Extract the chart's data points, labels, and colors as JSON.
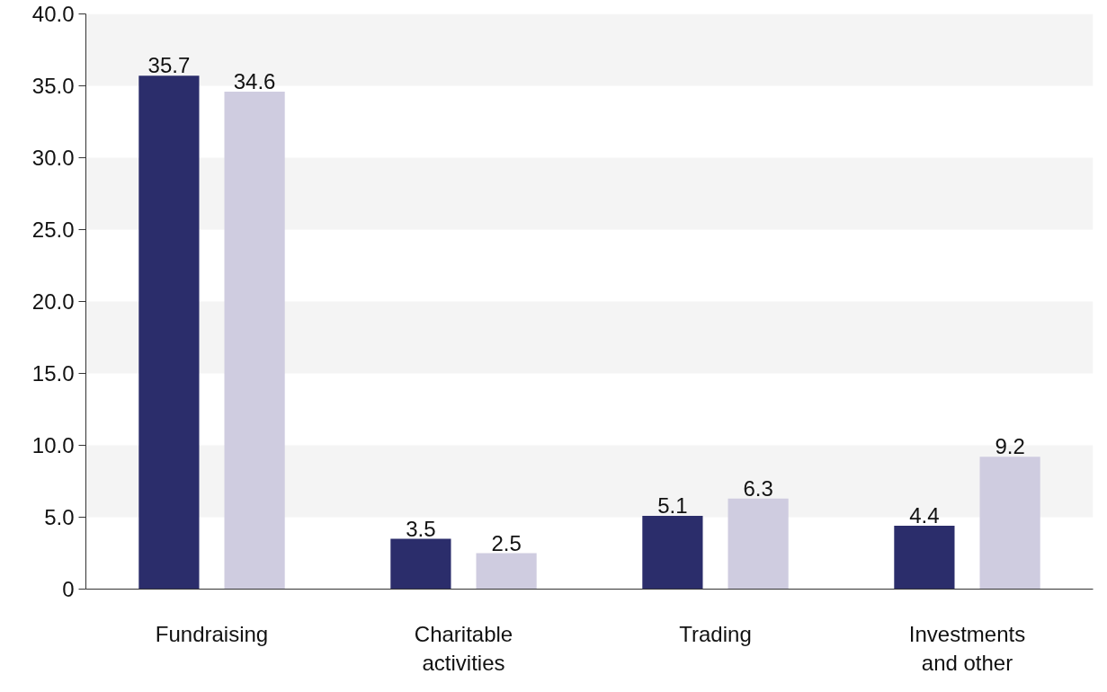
{
  "chart_data": {
    "type": "bar",
    "categories": [
      "Fundraising",
      "Charitable\nactivities",
      "Trading",
      "Investments\nand other"
    ],
    "series": [
      {
        "color": "#2b2d6b",
        "values": [
          35.7,
          3.5,
          5.1,
          4.4
        ]
      },
      {
        "color": "#cfcce0",
        "values": [
          34.6,
          2.5,
          6.3,
          9.2
        ]
      }
    ],
    "ylim": [
      0,
      40
    ],
    "yticks": [
      0,
      {
        "value": 5,
        "label": "5.0"
      },
      {
        "value": 10,
        "label": "10.0"
      },
      {
        "value": 15,
        "label": "15.0"
      },
      {
        "value": 20,
        "label": "20.0"
      },
      {
        "value": 25,
        "label": "25.0"
      },
      {
        "value": 30,
        "label": "30.0"
      },
      {
        "value": 35,
        "label": "35.0"
      },
      {
        "value": 40,
        "label": "40.0"
      }
    ],
    "bands": [
      {
        "axis": "y",
        "from": 5,
        "to": 10,
        "color": "#f4f4f4"
      },
      {
        "axis": "y",
        "from": 15,
        "to": 20,
        "color": "#f4f4f4"
      },
      {
        "axis": "y",
        "from": 25,
        "to": 30,
        "color": "#f4f4f4"
      },
      {
        "axis": "y",
        "from": 35,
        "to": 40,
        "color": "#f4f4f4"
      }
    ],
    "data_labels": true
  }
}
